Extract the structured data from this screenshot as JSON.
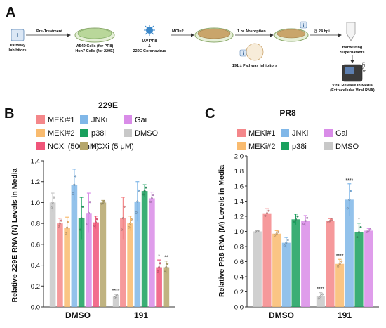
{
  "panel_a": {
    "letter": "A",
    "pathway_box_label": "Pathway\nInhibitors",
    "pretreatment": "Pre-Treatment",
    "cells_label_1": "A549 Cells (for PR8)",
    "cells_label_2": "Huh7 Cells (for 229E)",
    "virus_label_1": "IAV PR8",
    "virus_label_2": "&",
    "virus_label_3": "229E Coronavirus",
    "moi": "MOI=2",
    "absorption": "1 hr Absorption",
    "inhibitors_191": "191 ± Pathway Inhibitors",
    "hpi": "@ 24 hpi",
    "harvest_1": "Harvesting",
    "harvest_2": "Supernatants",
    "qpcr": "qPCR",
    "release_1": "Viral Release in Media",
    "release_2": "(Extracellular Viral RNA)",
    "i_icon": "i"
  },
  "chart_data": [
    {
      "panel": "B",
      "type": "bar",
      "title": "229E",
      "ylabel": "Relative 229E RNA (N) Levels in Media",
      "ylim": [
        0.0,
        1.4
      ],
      "yticks": [
        "0.0",
        "0.2",
        "0.4",
        "0.6",
        "0.8",
        "1.0",
        "1.2",
        "1.4"
      ],
      "categories": [
        "DMSO",
        "191"
      ],
      "legend": [
        {
          "name": "MEKi#1",
          "color": "#f4878a"
        },
        {
          "name": "JNKi",
          "color": "#80b7e8"
        },
        {
          "name": "Gai",
          "color": "#d98ce8"
        },
        {
          "name": "MEKi#2",
          "color": "#f9bb6f"
        },
        {
          "name": "p38i",
          "color": "#19a05d"
        },
        {
          "name": "DMSO",
          "color": "#c8c8c8"
        },
        {
          "name": "NCXi (500 nM)",
          "color": "#f0557a"
        },
        {
          "name": "NCXi (5 μM)",
          "color": "#b5a66b"
        }
      ],
      "series": [
        {
          "name": "DMSO",
          "color": "#c8c8c8",
          "values": [
            1.0,
            0.1
          ],
          "errors": [
            0.09,
            0.02
          ],
          "sig": [
            "",
            "****"
          ]
        },
        {
          "name": "MEKi#1",
          "color": "#f4878a",
          "values": [
            0.8,
            0.85
          ],
          "errors": [
            0.05,
            0.2
          ],
          "sig": [
            "",
            ""
          ]
        },
        {
          "name": "MEKi#2",
          "color": "#f9bb6f",
          "values": [
            0.76,
            0.8
          ],
          "errors": [
            0.1,
            0.07
          ],
          "sig": [
            "",
            ""
          ]
        },
        {
          "name": "JNKi",
          "color": "#80b7e8",
          "values": [
            1.17,
            1.01
          ],
          "errors": [
            0.15,
            0.19
          ],
          "sig": [
            "",
            ""
          ]
        },
        {
          "name": "p38i",
          "color": "#19a05d",
          "values": [
            0.85,
            1.11
          ],
          "errors": [
            0.2,
            0.06
          ],
          "sig": [
            "",
            ""
          ]
        },
        {
          "name": "Gai",
          "color": "#d98ce8",
          "values": [
            0.9,
            1.04
          ],
          "errors": [
            0.19,
            0.06
          ],
          "sig": [
            "",
            ""
          ]
        },
        {
          "name": "NCXi (500 nM)",
          "color": "#f0557a",
          "values": [
            0.81,
            0.38
          ],
          "errors": [
            0.06,
            0.07
          ],
          "sig": [
            "",
            "*"
          ]
        },
        {
          "name": "NCXi (5 μM)",
          "color": "#b5a66b",
          "values": [
            1.0,
            0.38
          ],
          "errors": [
            0.02,
            0.06
          ],
          "sig": [
            "",
            "**"
          ]
        }
      ]
    },
    {
      "panel": "C",
      "type": "bar",
      "title": "PR8",
      "ylabel": "Relative PR8 RNA (M) Levels in Media",
      "ylim": [
        0.0,
        2.0
      ],
      "yticks": [
        "0.0",
        "0.2",
        "0.4",
        "0.6",
        "0.8",
        "1.0",
        "1.2",
        "1.4",
        "1.6",
        "1.8",
        "2.0"
      ],
      "categories": [
        "DMSO",
        "191"
      ],
      "legend": [
        {
          "name": "MEKi#1",
          "color": "#f4878a"
        },
        {
          "name": "JNKi",
          "color": "#80b7e8"
        },
        {
          "name": "Gai",
          "color": "#d98ce8"
        },
        {
          "name": "MEKi#2",
          "color": "#f9bb6f"
        },
        {
          "name": "p38i",
          "color": "#19a05d"
        },
        {
          "name": "DMSO",
          "color": "#c8c8c8"
        }
      ],
      "series": [
        {
          "name": "DMSO",
          "color": "#c8c8c8",
          "values": [
            1.0,
            0.14
          ],
          "errors": [
            0.01,
            0.05
          ],
          "sig": [
            "",
            "****"
          ]
        },
        {
          "name": "MEKi#1",
          "color": "#f4878a",
          "values": [
            1.24,
            1.14
          ],
          "errors": [
            0.06,
            0.03
          ],
          "sig": [
            "",
            ""
          ]
        },
        {
          "name": "MEKi#2",
          "color": "#f9bb6f",
          "values": [
            0.97,
            0.57
          ],
          "errors": [
            0.04,
            0.06
          ],
          "sig": [
            "",
            "****"
          ]
        },
        {
          "name": "JNKi",
          "color": "#80b7e8",
          "values": [
            0.85,
            1.42
          ],
          "errors": [
            0.07,
            0.21
          ],
          "sig": [
            "",
            "****"
          ]
        },
        {
          "name": "p38i",
          "color": "#19a05d",
          "values": [
            1.16,
            0.99
          ],
          "errors": [
            0.07,
            0.12
          ],
          "sig": [
            "",
            "*"
          ]
        },
        {
          "name": "Gai",
          "color": "#d98ce8",
          "values": [
            1.14,
            1.01
          ],
          "errors": [
            0.07,
            0.03
          ],
          "sig": [
            "",
            ""
          ]
        }
      ]
    }
  ]
}
